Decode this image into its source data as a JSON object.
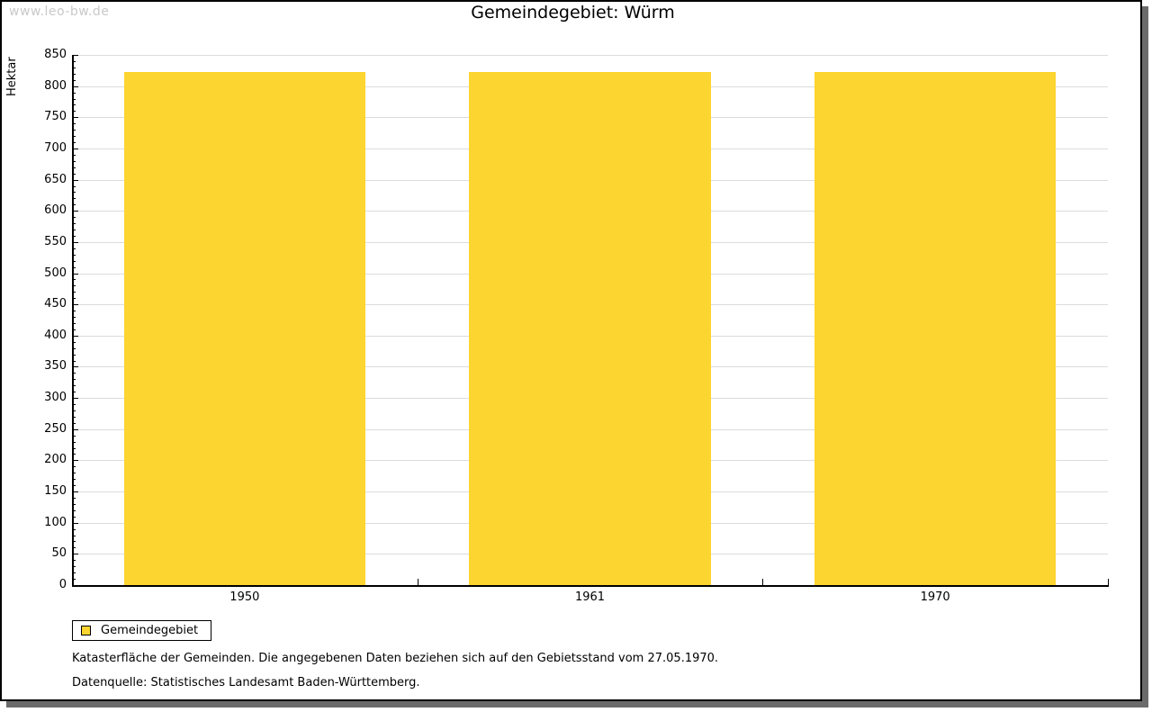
{
  "watermark": "www.leo-bw.de",
  "chart_data": {
    "type": "bar",
    "title": "Gemeindegebiet: Würm",
    "ylabel": "Hektar",
    "xlabel": "",
    "categories": [
      "1950",
      "1961",
      "1970"
    ],
    "series": [
      {
        "name": "Gemeindegebiet",
        "color": "#FDD530",
        "values": [
          822,
          822,
          822
        ]
      }
    ],
    "ylim": [
      0,
      850
    ],
    "y_major_step": 50,
    "y_minor_step": 10,
    "grid": true,
    "legend_position": "bottom-left"
  },
  "footer": {
    "note": "Katasterfläche der Gemeinden. Die angegebenen Daten beziehen sich auf den Gebietsstand vom 27.05.1970.",
    "source": "Datenquelle: Statistisches Landesamt Baden-Württemberg."
  },
  "colors": {
    "bar": "#FDD530",
    "grid": "#dcdcdc",
    "axis": "#000000",
    "watermark": "#c9c9c9",
    "frame_shadow": "#6b6b6b"
  }
}
